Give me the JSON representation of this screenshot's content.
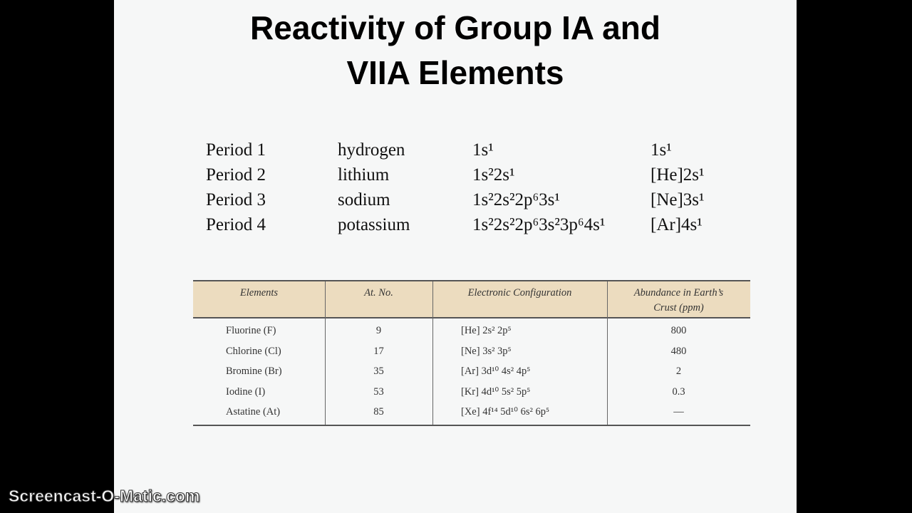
{
  "header": {
    "title": [
      "Reactivity of Group IA and",
      "VIIA Elements"
    ]
  },
  "periods": [
    [
      "Period 1",
      "hydrogen",
      "1s¹",
      "1s¹"
    ],
    [
      "Period 2",
      "lithium",
      "1s²2s¹",
      "[He]2s¹"
    ],
    [
      "Period 3",
      "sodium",
      "1s²2s²2p⁶3s¹",
      "[Ne]3s¹"
    ],
    [
      "Period 4",
      "potassium",
      "1s²2s²2p⁶3s²3p⁶4s¹",
      "[Ar]4s¹"
    ]
  ],
  "table": {
    "columns": [
      "Elements",
      "At. No.",
      "Electronic Configuration",
      "Abundance in Earth’s Crust (ppm)"
    ],
    "rows": [
      [
        "Fluorine (F)",
        "9",
        "[He] 2s² 2p⁵",
        "800"
      ],
      [
        "Chlorine (Cl)",
        "17",
        "[Ne] 3s² 3p⁵",
        "480"
      ],
      [
        "Bromine (Br)",
        "35",
        "[Ar] 3d¹⁰ 4s² 4p⁵",
        "2"
      ],
      [
        "Iodine (I)",
        "53",
        "[Kr] 4d¹⁰ 5s² 5p⁵",
        "0.3"
      ],
      [
        "Astatine (At)",
        "85",
        "[Xe] 4f¹⁴ 5d¹⁰ 6s² 6p⁵",
        "—"
      ]
    ]
  },
  "watermark": "Screencast-O-Matic.com"
}
